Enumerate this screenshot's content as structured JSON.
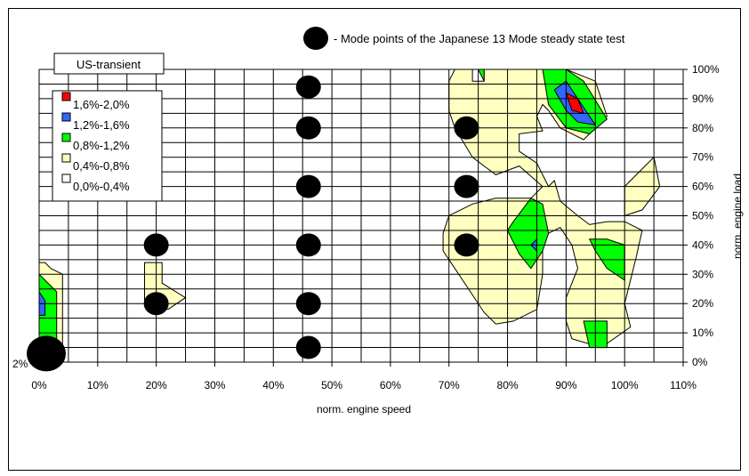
{
  "chart_data": {
    "type": "contour",
    "xlabel": "norm. engine speed",
    "ylabel": "norm. engine load",
    "xlim": [
      0,
      110
    ],
    "ylim": [
      0,
      100
    ],
    "x_ticks": [
      "0%",
      "10%",
      "20%",
      "30%",
      "40%",
      "50%",
      "60%",
      "70%",
      "80%",
      "90%",
      "100%",
      "110%"
    ],
    "y_ticks": [
      "0%",
      "10%",
      "20%",
      "30%",
      "40%",
      "50%",
      "60%",
      "70%",
      "80%",
      "90%",
      "100%"
    ],
    "grid": true,
    "legend": {
      "title": "US-transient",
      "placement": "top-left",
      "entries": [
        {
          "label": "1,6%-2,0%",
          "color": "#ff0000"
        },
        {
          "label": "1,2%-1,6%",
          "color": "#3366ff"
        },
        {
          "label": "0,8%-1,2%",
          "color": "#00ff00"
        },
        {
          "label": "0,4%-0,8%",
          "color": "#ffffc0"
        },
        {
          "label": "0,0%-0,4%",
          "color": "#ffffff"
        }
      ]
    },
    "annotation": {
      "text": "- Mode points of the Japanese 13 Mode steady state test"
    },
    "corner_label": "2%",
    "mode_points": [
      {
        "x": 0,
        "y": 2
      },
      {
        "x": 20,
        "y": 40
      },
      {
        "x": 20,
        "y": 20
      },
      {
        "x": 46,
        "y": 94
      },
      {
        "x": 46,
        "y": 80
      },
      {
        "x": 46,
        "y": 60
      },
      {
        "x": 46,
        "y": 40
      },
      {
        "x": 46,
        "y": 20
      },
      {
        "x": 46,
        "y": 5
      },
      {
        "x": 73,
        "y": 80
      },
      {
        "x": 73,
        "y": 60
      },
      {
        "x": 73,
        "y": 40
      }
    ],
    "regions": [
      {
        "band": "0,4%-0,8%",
        "points": [
          [
            0,
            34
          ],
          [
            1,
            34
          ],
          [
            2,
            32
          ],
          [
            4,
            30
          ],
          [
            4,
            5
          ],
          [
            3,
            2
          ],
          [
            0,
            0
          ]
        ]
      },
      {
        "band": "0,8%-1,2%",
        "points": [
          [
            0,
            30
          ],
          [
            1,
            28
          ],
          [
            3,
            24
          ],
          [
            3,
            6
          ],
          [
            1,
            6
          ],
          [
            0,
            7
          ]
        ]
      },
      {
        "band": "1,2%-1,6%",
        "points": [
          [
            0,
            24
          ],
          [
            1,
            21
          ],
          [
            1,
            16
          ],
          [
            0,
            16
          ]
        ]
      },
      {
        "band": "1,6%-2,0%",
        "points": [
          [
            0,
            8
          ],
          [
            1,
            8
          ],
          [
            1,
            4
          ],
          [
            0,
            4
          ]
        ]
      },
      {
        "band": "0,4%-0,8%",
        "points": [
          [
            18,
            34
          ],
          [
            21,
            34
          ],
          [
            21,
            27
          ],
          [
            25,
            22
          ],
          [
            22,
            18
          ],
          [
            18,
            21
          ]
        ]
      },
      {
        "band": "0,4%-0,8%",
        "points": [
          [
            71,
            100
          ],
          [
            74,
            100
          ],
          [
            74,
            96
          ],
          [
            76,
            96
          ],
          [
            76,
            100
          ],
          [
            86,
            100
          ],
          [
            90,
            100
          ],
          [
            95,
            96
          ],
          [
            97,
            84
          ],
          [
            93,
            76
          ],
          [
            89,
            80
          ],
          [
            87,
            86
          ],
          [
            86,
            88
          ],
          [
            85,
            84
          ],
          [
            86,
            79
          ],
          [
            82,
            78
          ],
          [
            82,
            72
          ],
          [
            85,
            68
          ],
          [
            87,
            60
          ],
          [
            88,
            62
          ],
          [
            89,
            55
          ],
          [
            92,
            50
          ],
          [
            94,
            47
          ],
          [
            97,
            48
          ],
          [
            100,
            48
          ],
          [
            103,
            45
          ],
          [
            102,
            36
          ],
          [
            100,
            20
          ],
          [
            101,
            12
          ],
          [
            96,
            5
          ],
          [
            91,
            8
          ],
          [
            90,
            14
          ],
          [
            90,
            22
          ],
          [
            92,
            32
          ],
          [
            91,
            40
          ],
          [
            89,
            46
          ],
          [
            87,
            44
          ],
          [
            86,
            40
          ],
          [
            86,
            30
          ],
          [
            85,
            18
          ],
          [
            81,
            14
          ],
          [
            78,
            13
          ],
          [
            76,
            17
          ],
          [
            73,
            26
          ],
          [
            69,
            38
          ],
          [
            69,
            44
          ],
          [
            70,
            50
          ],
          [
            74,
            54
          ],
          [
            78,
            56
          ],
          [
            84,
            56
          ],
          [
            86,
            60
          ],
          [
            82,
            67
          ],
          [
            78,
            64
          ],
          [
            76,
            67
          ],
          [
            74,
            70
          ],
          [
            71,
            80
          ],
          [
            70,
            86
          ],
          [
            70,
            96
          ]
        ]
      },
      {
        "band": "0,4%-0,8%",
        "points": [
          [
            100,
            60
          ],
          [
            100,
            50
          ],
          [
            103,
            52
          ],
          [
            106,
            60
          ],
          [
            105,
            70
          ]
        ]
      },
      {
        "band": "0,8%-1,2%",
        "points": [
          [
            86,
            100
          ],
          [
            90,
            100
          ],
          [
            93,
            96
          ],
          [
            97,
            83
          ],
          [
            94,
            78
          ],
          [
            90,
            80
          ],
          [
            87,
            88
          ]
        ]
      },
      {
        "band": "0,8%-1,2%",
        "points": [
          [
            75,
            100
          ],
          [
            76,
            100
          ],
          [
            76,
            96
          ]
        ]
      },
      {
        "band": "0,8%-1,2%",
        "points": [
          [
            81,
            48
          ],
          [
            84,
            56
          ],
          [
            86,
            54
          ],
          [
            87,
            44
          ],
          [
            86,
            38
          ],
          [
            84,
            32
          ],
          [
            82,
            37
          ],
          [
            80,
            45
          ]
        ]
      },
      {
        "band": "0,8%-1,2%",
        "points": [
          [
            94,
            42
          ],
          [
            97,
            42
          ],
          [
            100,
            40
          ],
          [
            100,
            28
          ],
          [
            97,
            32
          ],
          [
            95,
            38
          ]
        ]
      },
      {
        "band": "0,8%-1,2%",
        "points": [
          [
            93,
            14
          ],
          [
            97,
            14
          ],
          [
            97,
            5
          ],
          [
            94,
            5
          ]
        ]
      },
      {
        "band": "1,2%-1,6%",
        "points": [
          [
            88,
            93
          ],
          [
            90,
            96
          ],
          [
            92,
            90
          ],
          [
            95,
            81
          ],
          [
            92,
            82
          ],
          [
            90,
            86
          ]
        ]
      },
      {
        "band": "1,2%-1,6%",
        "points": [
          [
            84,
            40
          ],
          [
            85,
            42
          ],
          [
            85,
            38
          ]
        ]
      },
      {
        "band": "1,6%-2,0%",
        "points": [
          [
            90,
            92
          ],
          [
            92,
            90
          ],
          [
            93,
            85
          ],
          [
            91,
            86
          ]
        ]
      }
    ]
  }
}
